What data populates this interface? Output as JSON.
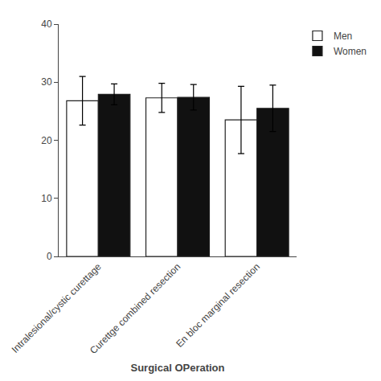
{
  "chart_data": {
    "type": "bar",
    "xlabel": "Surgical OPeration",
    "categories": [
      "Intralesional/cystic curettage",
      "Curettge combined resection",
      "En bloc marginal resection"
    ],
    "series": [
      {
        "name": "Men",
        "color": "#ffffff",
        "values": [
          26.8,
          27.3,
          23.5
        ],
        "errors": [
          4.2,
          2.5,
          5.8
        ]
      },
      {
        "name": "Women",
        "color": "#111111",
        "values": [
          27.9,
          27.4,
          25.5
        ],
        "errors": [
          1.8,
          2.2,
          4.0
        ]
      }
    ],
    "ylim": [
      0,
      40
    ],
    "yticks": [
      0,
      10,
      20,
      30,
      40
    ],
    "grid": false,
    "legend": "upper right"
  }
}
